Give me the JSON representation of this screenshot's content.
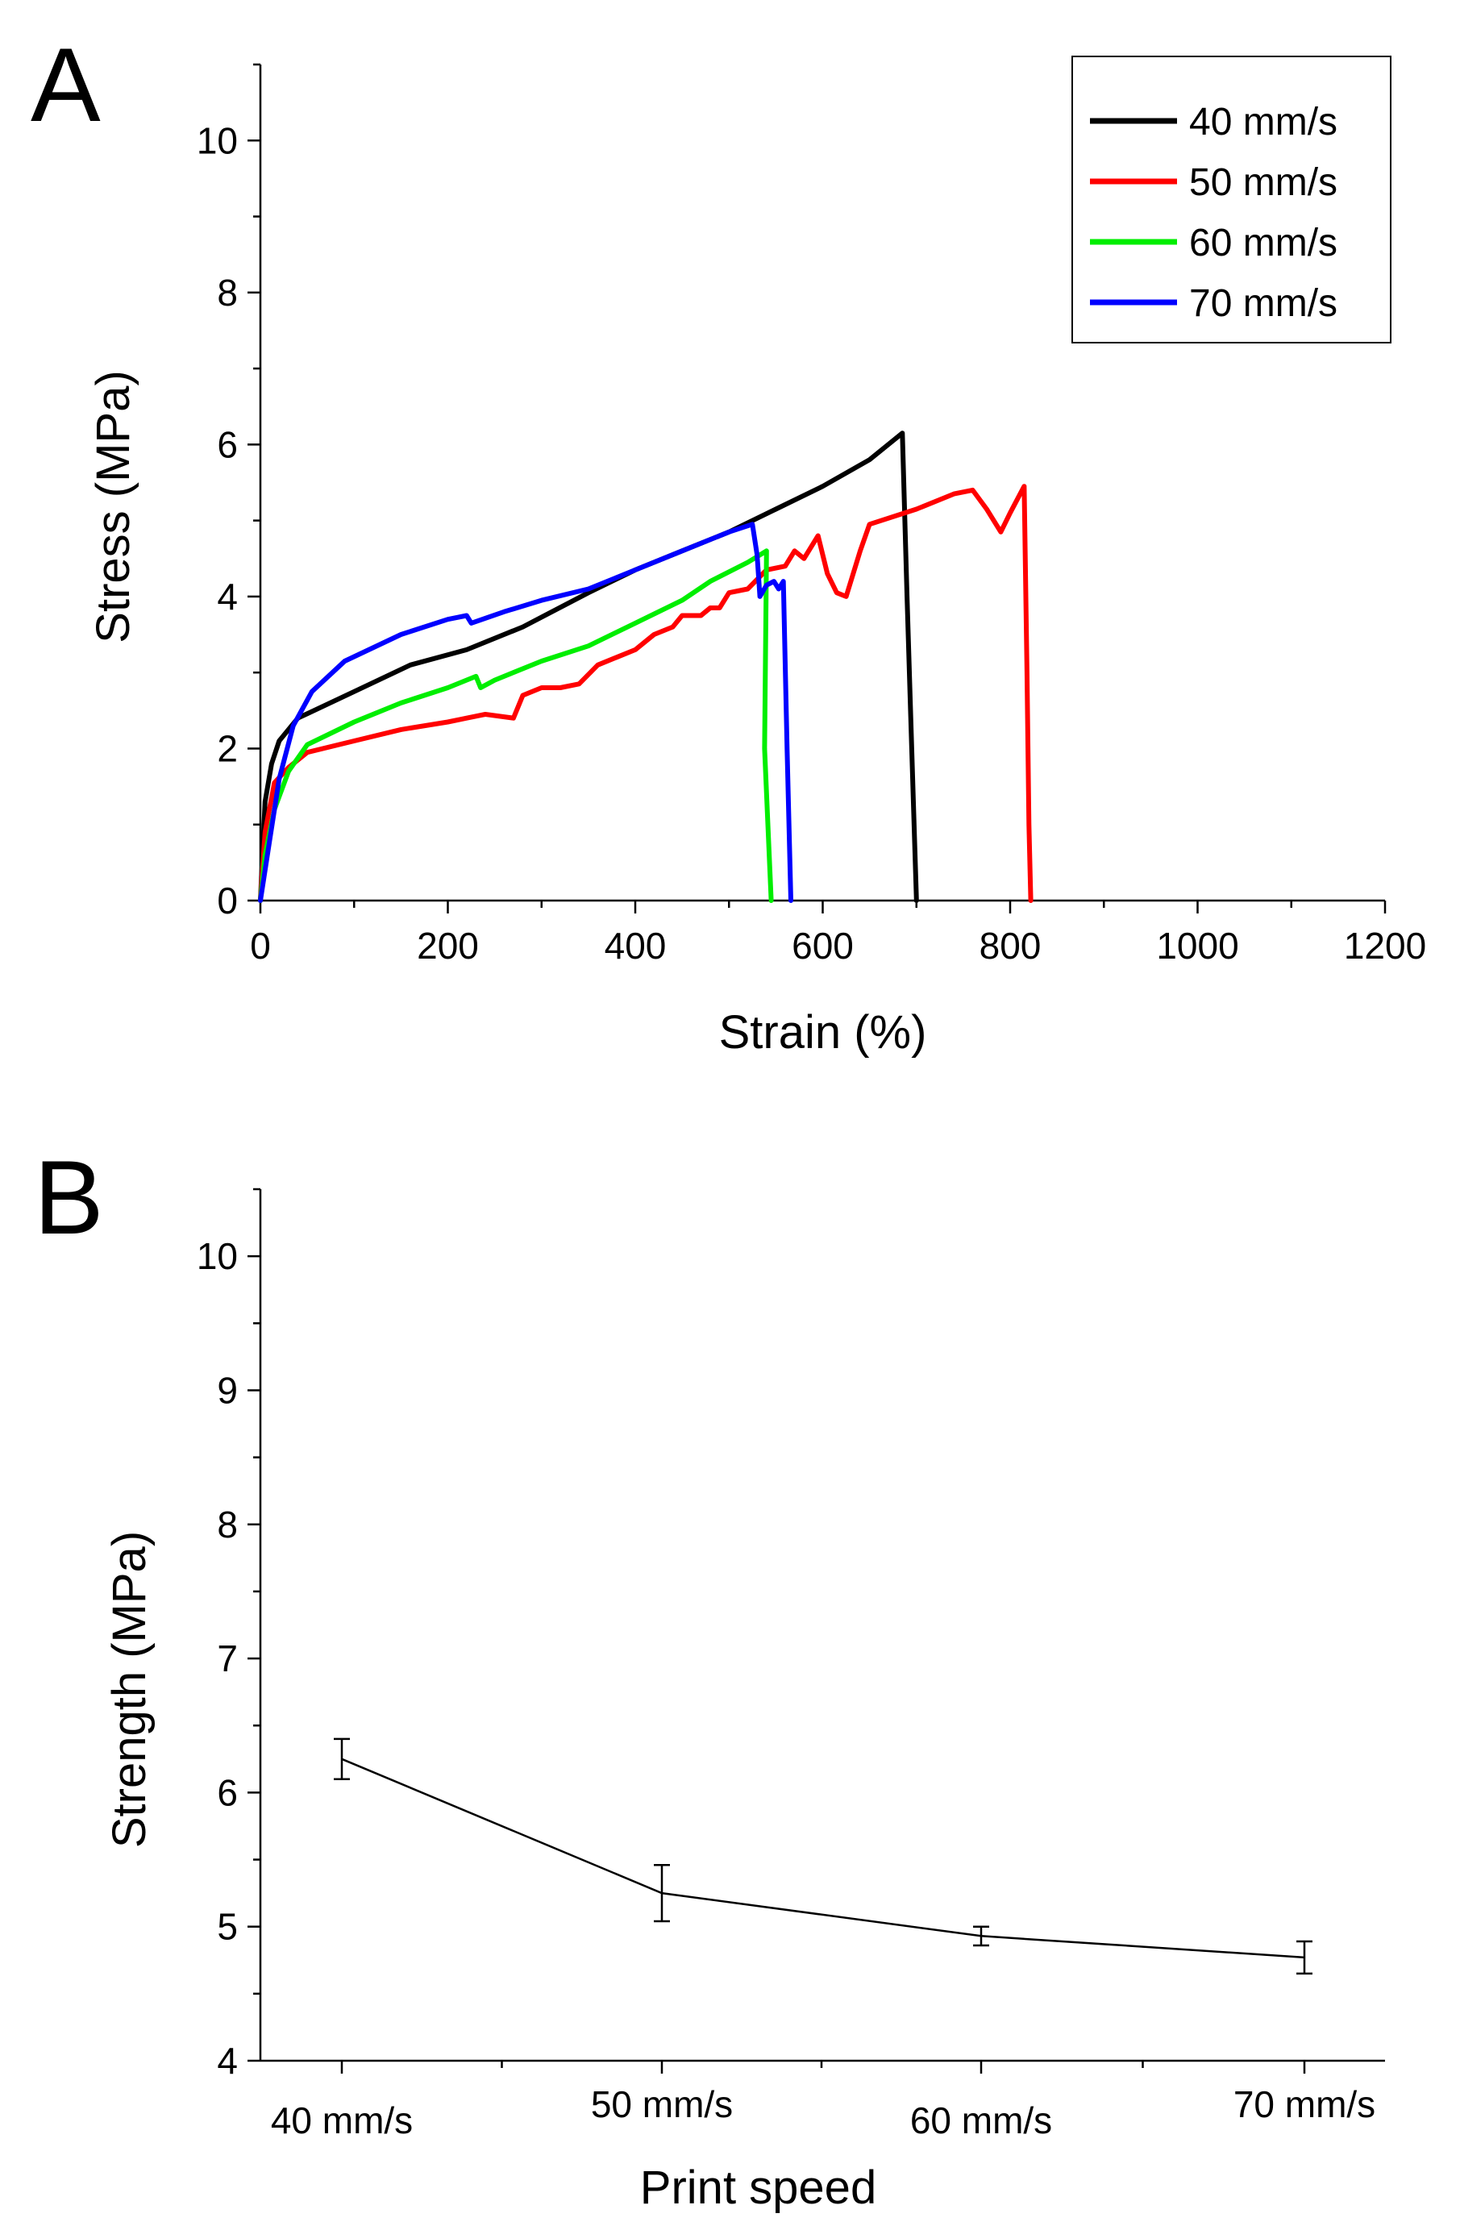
{
  "figure": {
    "panel_a_label": "A",
    "panel_b_label": "B"
  },
  "chart_data": [
    {
      "panel": "A",
      "type": "line",
      "title": "",
      "xlabel": "Strain (%)",
      "ylabel": "Stress (MPa)",
      "xlim": [
        0,
        1200
      ],
      "ylim": [
        0,
        11
      ],
      "xticks": [
        0,
        200,
        400,
        600,
        800,
        1000,
        1200
      ],
      "xtick_labels": [
        "0",
        "200",
        "400",
        "600",
        "800",
        "1000",
        "1200"
      ],
      "yticks": [
        0,
        2,
        4,
        6,
        8,
        10
      ],
      "ytick_labels": [
        "0",
        "2",
        "4",
        "6",
        "8",
        "10"
      ],
      "legend_position": "top-right",
      "series": [
        {
          "name": "40 mm/s",
          "color": "#000000",
          "points": [
            [
              0,
              0
            ],
            [
              5,
              1.3
            ],
            [
              12,
              1.8
            ],
            [
              20,
              2.1
            ],
            [
              40,
              2.4
            ],
            [
              100,
              2.75
            ],
            [
              160,
              3.1
            ],
            [
              220,
              3.3
            ],
            [
              280,
              3.6
            ],
            [
              350,
              4.05
            ],
            [
              400,
              4.35
            ],
            [
              450,
              4.6
            ],
            [
              500,
              4.85
            ],
            [
              550,
              5.15
            ],
            [
              600,
              5.45
            ],
            [
              650,
              5.8
            ],
            [
              685,
              6.15
            ],
            [
              690,
              4.0
            ],
            [
              695,
              2.0
            ],
            [
              700,
              0
            ]
          ]
        },
        {
          "name": "50 mm/s",
          "color": "#ff0000",
          "points": [
            [
              0,
              0
            ],
            [
              5,
              0.9
            ],
            [
              15,
              1.55
            ],
            [
              30,
              1.75
            ],
            [
              50,
              1.95
            ],
            [
              100,
              2.1
            ],
            [
              150,
              2.25
            ],
            [
              200,
              2.35
            ],
            [
              220,
              2.4
            ],
            [
              240,
              2.45
            ],
            [
              270,
              2.4
            ],
            [
              280,
              2.7
            ],
            [
              300,
              2.8
            ],
            [
              320,
              2.8
            ],
            [
              340,
              2.85
            ],
            [
              360,
              3.1
            ],
            [
              380,
              3.2
            ],
            [
              400,
              3.3
            ],
            [
              420,
              3.5
            ],
            [
              440,
              3.6
            ],
            [
              450,
              3.75
            ],
            [
              470,
              3.75
            ],
            [
              480,
              3.85
            ],
            [
              490,
              3.85
            ],
            [
              500,
              4.05
            ],
            [
              520,
              4.1
            ],
            [
              540,
              4.35
            ],
            [
              560,
              4.4
            ],
            [
              570,
              4.6
            ],
            [
              580,
              4.5
            ],
            [
              595,
              4.8
            ],
            [
              605,
              4.3
            ],
            [
              615,
              4.05
            ],
            [
              625,
              4.0
            ],
            [
              640,
              4.6
            ],
            [
              650,
              4.95
            ],
            [
              700,
              5.15
            ],
            [
              740,
              5.35
            ],
            [
              760,
              5.4
            ],
            [
              775,
              5.15
            ],
            [
              790,
              4.85
            ],
            [
              800,
              5.1
            ],
            [
              815,
              5.45
            ],
            [
              818,
              3.0
            ],
            [
              820,
              1.0
            ],
            [
              822,
              0
            ]
          ]
        },
        {
          "name": "60 mm/s",
          "color": "#00ee00",
          "points": [
            [
              0,
              0
            ],
            [
              5,
              0.6
            ],
            [
              15,
              1.2
            ],
            [
              30,
              1.7
            ],
            [
              50,
              2.05
            ],
            [
              100,
              2.35
            ],
            [
              150,
              2.6
            ],
            [
              200,
              2.8
            ],
            [
              230,
              2.95
            ],
            [
              235,
              2.8
            ],
            [
              250,
              2.9
            ],
            [
              300,
              3.15
            ],
            [
              350,
              3.35
            ],
            [
              400,
              3.65
            ],
            [
              450,
              3.95
            ],
            [
              480,
              4.2
            ],
            [
              520,
              4.45
            ],
            [
              540,
              4.6
            ],
            [
              538,
              2.0
            ],
            [
              545,
              0
            ]
          ]
        },
        {
          "name": "70 mm/s",
          "color": "#0000ff",
          "points": [
            [
              0,
              0
            ],
            [
              10,
              0.8
            ],
            [
              20,
              1.6
            ],
            [
              35,
              2.3
            ],
            [
              55,
              2.75
            ],
            [
              90,
              3.15
            ],
            [
              150,
              3.5
            ],
            [
              200,
              3.7
            ],
            [
              220,
              3.75
            ],
            [
              225,
              3.65
            ],
            [
              260,
              3.8
            ],
            [
              300,
              3.95
            ],
            [
              350,
              4.1
            ],
            [
              400,
              4.35
            ],
            [
              450,
              4.6
            ],
            [
              500,
              4.85
            ],
            [
              525,
              4.95
            ],
            [
              530,
              4.55
            ],
            [
              533,
              4.0
            ],
            [
              540,
              4.15
            ],
            [
              548,
              4.2
            ],
            [
              553,
              4.1
            ],
            [
              558,
              4.2
            ],
            [
              562,
              2.0
            ],
            [
              566,
              0
            ]
          ]
        }
      ]
    },
    {
      "panel": "B",
      "type": "line",
      "title": "",
      "xlabel": "Print speed",
      "ylabel": "Strength (MPa)",
      "ylim": [
        4,
        10.5
      ],
      "yticks": [
        4,
        5,
        6,
        7,
        8,
        9,
        10
      ],
      "ytick_labels": [
        "4",
        "5",
        "6",
        "7",
        "8",
        "9",
        "10"
      ],
      "categories": [
        "40 mm/s",
        "50 mm/s",
        "60 mm/s",
        "70 mm/s"
      ],
      "values": [
        6.25,
        5.25,
        4.93,
        4.77
      ],
      "errors": [
        0.15,
        0.21,
        0.07,
        0.12
      ],
      "color": "#000000"
    }
  ]
}
